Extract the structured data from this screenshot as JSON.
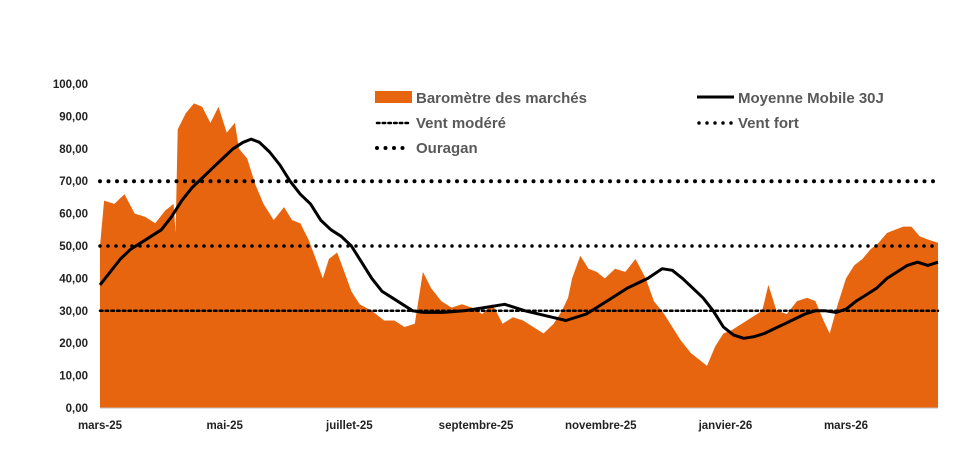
{
  "chart_data": {
    "type": "area",
    "title": "",
    "xlabel": "",
    "ylabel": "",
    "ylim": [
      0,
      100
    ],
    "y_ticks": [
      "0,00",
      "10,00",
      "20,00",
      "30,00",
      "40,00",
      "50,00",
      "60,00",
      "70,00",
      "80,00",
      "90,00",
      "100,00"
    ],
    "x_ticks": [
      "mars-25",
      "mai-25",
      "juillet-25",
      "septembre-25",
      "novembre-25",
      "janvier-26",
      "mars-26"
    ],
    "grid": false,
    "legend_position": "top",
    "colors": {
      "area": "#E8650F",
      "line": "#000000"
    },
    "x_start": "2025-03-01",
    "x_end": "2026-04-15",
    "series": [
      {
        "name": "Baromètre des marchés",
        "kind": "area",
        "points": [
          [
            "2025-03-01",
            50
          ],
          [
            "2025-03-03",
            64
          ],
          [
            "2025-03-08",
            63
          ],
          [
            "2025-03-13",
            66
          ],
          [
            "2025-03-18",
            60
          ],
          [
            "2025-03-23",
            59
          ],
          [
            "2025-03-28",
            57
          ],
          [
            "2025-04-02",
            61
          ],
          [
            "2025-04-06",
            63
          ],
          [
            "2025-04-07",
            54
          ],
          [
            "2025-04-08",
            86
          ],
          [
            "2025-04-12",
            91
          ],
          [
            "2025-04-16",
            94
          ],
          [
            "2025-04-20",
            93
          ],
          [
            "2025-04-24",
            88
          ],
          [
            "2025-04-28",
            93
          ],
          [
            "2025-05-02",
            85
          ],
          [
            "2025-05-06",
            88
          ],
          [
            "2025-05-08",
            80
          ],
          [
            "2025-05-12",
            77
          ],
          [
            "2025-05-16",
            69
          ],
          [
            "2025-05-20",
            63
          ],
          [
            "2025-05-25",
            58
          ],
          [
            "2025-05-30",
            62
          ],
          [
            "2025-06-03",
            58
          ],
          [
            "2025-06-07",
            57
          ],
          [
            "2025-06-11",
            52
          ],
          [
            "2025-06-14",
            47
          ],
          [
            "2025-06-18",
            40
          ],
          [
            "2025-06-21",
            46
          ],
          [
            "2025-06-25",
            48
          ],
          [
            "2025-06-28",
            43
          ],
          [
            "2025-07-02",
            36
          ],
          [
            "2025-07-06",
            32
          ],
          [
            "2025-07-12",
            30
          ],
          [
            "2025-07-18",
            27
          ],
          [
            "2025-07-23",
            27
          ],
          [
            "2025-07-28",
            25
          ],
          [
            "2025-08-02",
            26
          ],
          [
            "2025-08-06",
            42
          ],
          [
            "2025-08-10",
            37
          ],
          [
            "2025-08-15",
            33
          ],
          [
            "2025-08-20",
            31
          ],
          [
            "2025-08-25",
            32
          ],
          [
            "2025-08-30",
            31
          ],
          [
            "2025-09-04",
            29
          ],
          [
            "2025-09-09",
            32
          ],
          [
            "2025-09-14",
            26
          ],
          [
            "2025-09-19",
            28
          ],
          [
            "2025-09-24",
            27
          ],
          [
            "2025-09-29",
            25
          ],
          [
            "2025-10-04",
            23
          ],
          [
            "2025-10-09",
            26
          ],
          [
            "2025-10-13",
            30
          ],
          [
            "2025-10-16",
            34
          ],
          [
            "2025-10-18",
            40
          ],
          [
            "2025-10-22",
            47
          ],
          [
            "2025-10-26",
            43
          ],
          [
            "2025-10-30",
            42
          ],
          [
            "2025-11-03",
            40
          ],
          [
            "2025-11-08",
            43
          ],
          [
            "2025-11-13",
            42
          ],
          [
            "2025-11-18",
            46
          ],
          [
            "2025-11-23",
            40
          ],
          [
            "2025-11-27",
            33
          ],
          [
            "2025-12-02",
            29
          ],
          [
            "2025-12-06",
            25
          ],
          [
            "2025-12-10",
            21
          ],
          [
            "2025-12-15",
            17
          ],
          [
            "2025-12-19",
            15
          ],
          [
            "2025-12-23",
            13
          ],
          [
            "2025-12-27",
            19
          ],
          [
            "2025-12-31",
            23
          ],
          [
            "2026-01-04",
            24
          ],
          [
            "2026-01-09",
            26
          ],
          [
            "2026-01-14",
            28
          ],
          [
            "2026-01-19",
            30
          ],
          [
            "2026-01-22",
            38
          ],
          [
            "2026-01-26",
            30
          ],
          [
            "2026-01-31",
            29
          ],
          [
            "2026-02-05",
            33
          ],
          [
            "2026-02-10",
            34
          ],
          [
            "2026-02-14",
            33
          ],
          [
            "2026-02-18",
            27
          ],
          [
            "2026-02-21",
            23
          ],
          [
            "2026-02-25",
            32
          ],
          [
            "2026-03-01",
            40
          ],
          [
            "2026-03-05",
            44
          ],
          [
            "2026-03-09",
            46
          ],
          [
            "2026-03-13",
            49
          ],
          [
            "2026-03-17",
            51
          ],
          [
            "2026-03-21",
            54
          ],
          [
            "2026-03-25",
            55
          ],
          [
            "2026-03-29",
            56
          ],
          [
            "2026-04-02",
            56
          ],
          [
            "2026-04-06",
            53
          ],
          [
            "2026-04-10",
            52
          ],
          [
            "2026-04-15",
            51
          ]
        ]
      },
      {
        "name": "Moyenne Mobile 30J",
        "kind": "line",
        "points": [
          [
            "2025-03-01",
            38
          ],
          [
            "2025-03-06",
            42
          ],
          [
            "2025-03-11",
            46
          ],
          [
            "2025-03-16",
            49
          ],
          [
            "2025-03-21",
            51
          ],
          [
            "2025-03-26",
            53
          ],
          [
            "2025-03-31",
            55
          ],
          [
            "2025-04-05",
            59
          ],
          [
            "2025-04-10",
            64
          ],
          [
            "2025-04-15",
            68
          ],
          [
            "2025-04-20",
            71
          ],
          [
            "2025-04-25",
            74
          ],
          [
            "2025-04-30",
            77
          ],
          [
            "2025-05-05",
            80
          ],
          [
            "2025-05-10",
            82
          ],
          [
            "2025-05-14",
            83
          ],
          [
            "2025-05-18",
            82
          ],
          [
            "2025-05-23",
            79
          ],
          [
            "2025-05-28",
            75
          ],
          [
            "2025-06-02",
            70
          ],
          [
            "2025-06-07",
            66
          ],
          [
            "2025-06-12",
            63
          ],
          [
            "2025-06-17",
            58
          ],
          [
            "2025-06-22",
            55
          ],
          [
            "2025-06-27",
            53
          ],
          [
            "2025-07-02",
            50
          ],
          [
            "2025-07-07",
            45
          ],
          [
            "2025-07-12",
            40
          ],
          [
            "2025-07-17",
            36
          ],
          [
            "2025-07-22",
            34
          ],
          [
            "2025-07-27",
            32
          ],
          [
            "2025-08-01",
            30
          ],
          [
            "2025-08-06",
            29.5
          ],
          [
            "2025-08-16",
            29.5
          ],
          [
            "2025-08-26",
            30
          ],
          [
            "2025-09-05",
            31
          ],
          [
            "2025-09-15",
            32
          ],
          [
            "2025-09-25",
            30
          ],
          [
            "2025-10-05",
            28.5
          ],
          [
            "2025-10-15",
            27
          ],
          [
            "2025-10-25",
            29
          ],
          [
            "2025-11-04",
            33
          ],
          [
            "2025-11-14",
            37
          ],
          [
            "2025-11-24",
            40
          ],
          [
            "2025-12-01",
            43
          ],
          [
            "2025-12-06",
            42.5
          ],
          [
            "2025-12-11",
            40
          ],
          [
            "2025-12-16",
            37
          ],
          [
            "2025-12-21",
            34
          ],
          [
            "2025-12-26",
            30
          ],
          [
            "2025-12-31",
            25
          ],
          [
            "2026-01-05",
            22.5
          ],
          [
            "2026-01-10",
            21.5
          ],
          [
            "2026-01-15",
            22
          ],
          [
            "2026-01-20",
            23
          ],
          [
            "2026-01-25",
            24.5
          ],
          [
            "2026-01-30",
            26
          ],
          [
            "2026-02-04",
            27.5
          ],
          [
            "2026-02-09",
            29
          ],
          [
            "2026-02-14",
            30
          ],
          [
            "2026-02-19",
            30
          ],
          [
            "2026-02-24",
            29.5
          ],
          [
            "2026-03-01",
            30.5
          ],
          [
            "2026-03-06",
            33
          ],
          [
            "2026-03-11",
            35
          ],
          [
            "2026-03-16",
            37
          ],
          [
            "2026-03-21",
            40
          ],
          [
            "2026-03-26",
            42
          ],
          [
            "2026-03-31",
            44
          ],
          [
            "2026-04-05",
            45
          ],
          [
            "2026-04-10",
            44
          ],
          [
            "2026-04-15",
            45
          ]
        ]
      },
      {
        "name": "Vent modéré",
        "kind": "hline",
        "y": 30
      },
      {
        "name": "Vent fort",
        "kind": "hline",
        "y": 50
      },
      {
        "name": "Ouragan",
        "kind": "hline",
        "y": 70
      }
    ]
  }
}
